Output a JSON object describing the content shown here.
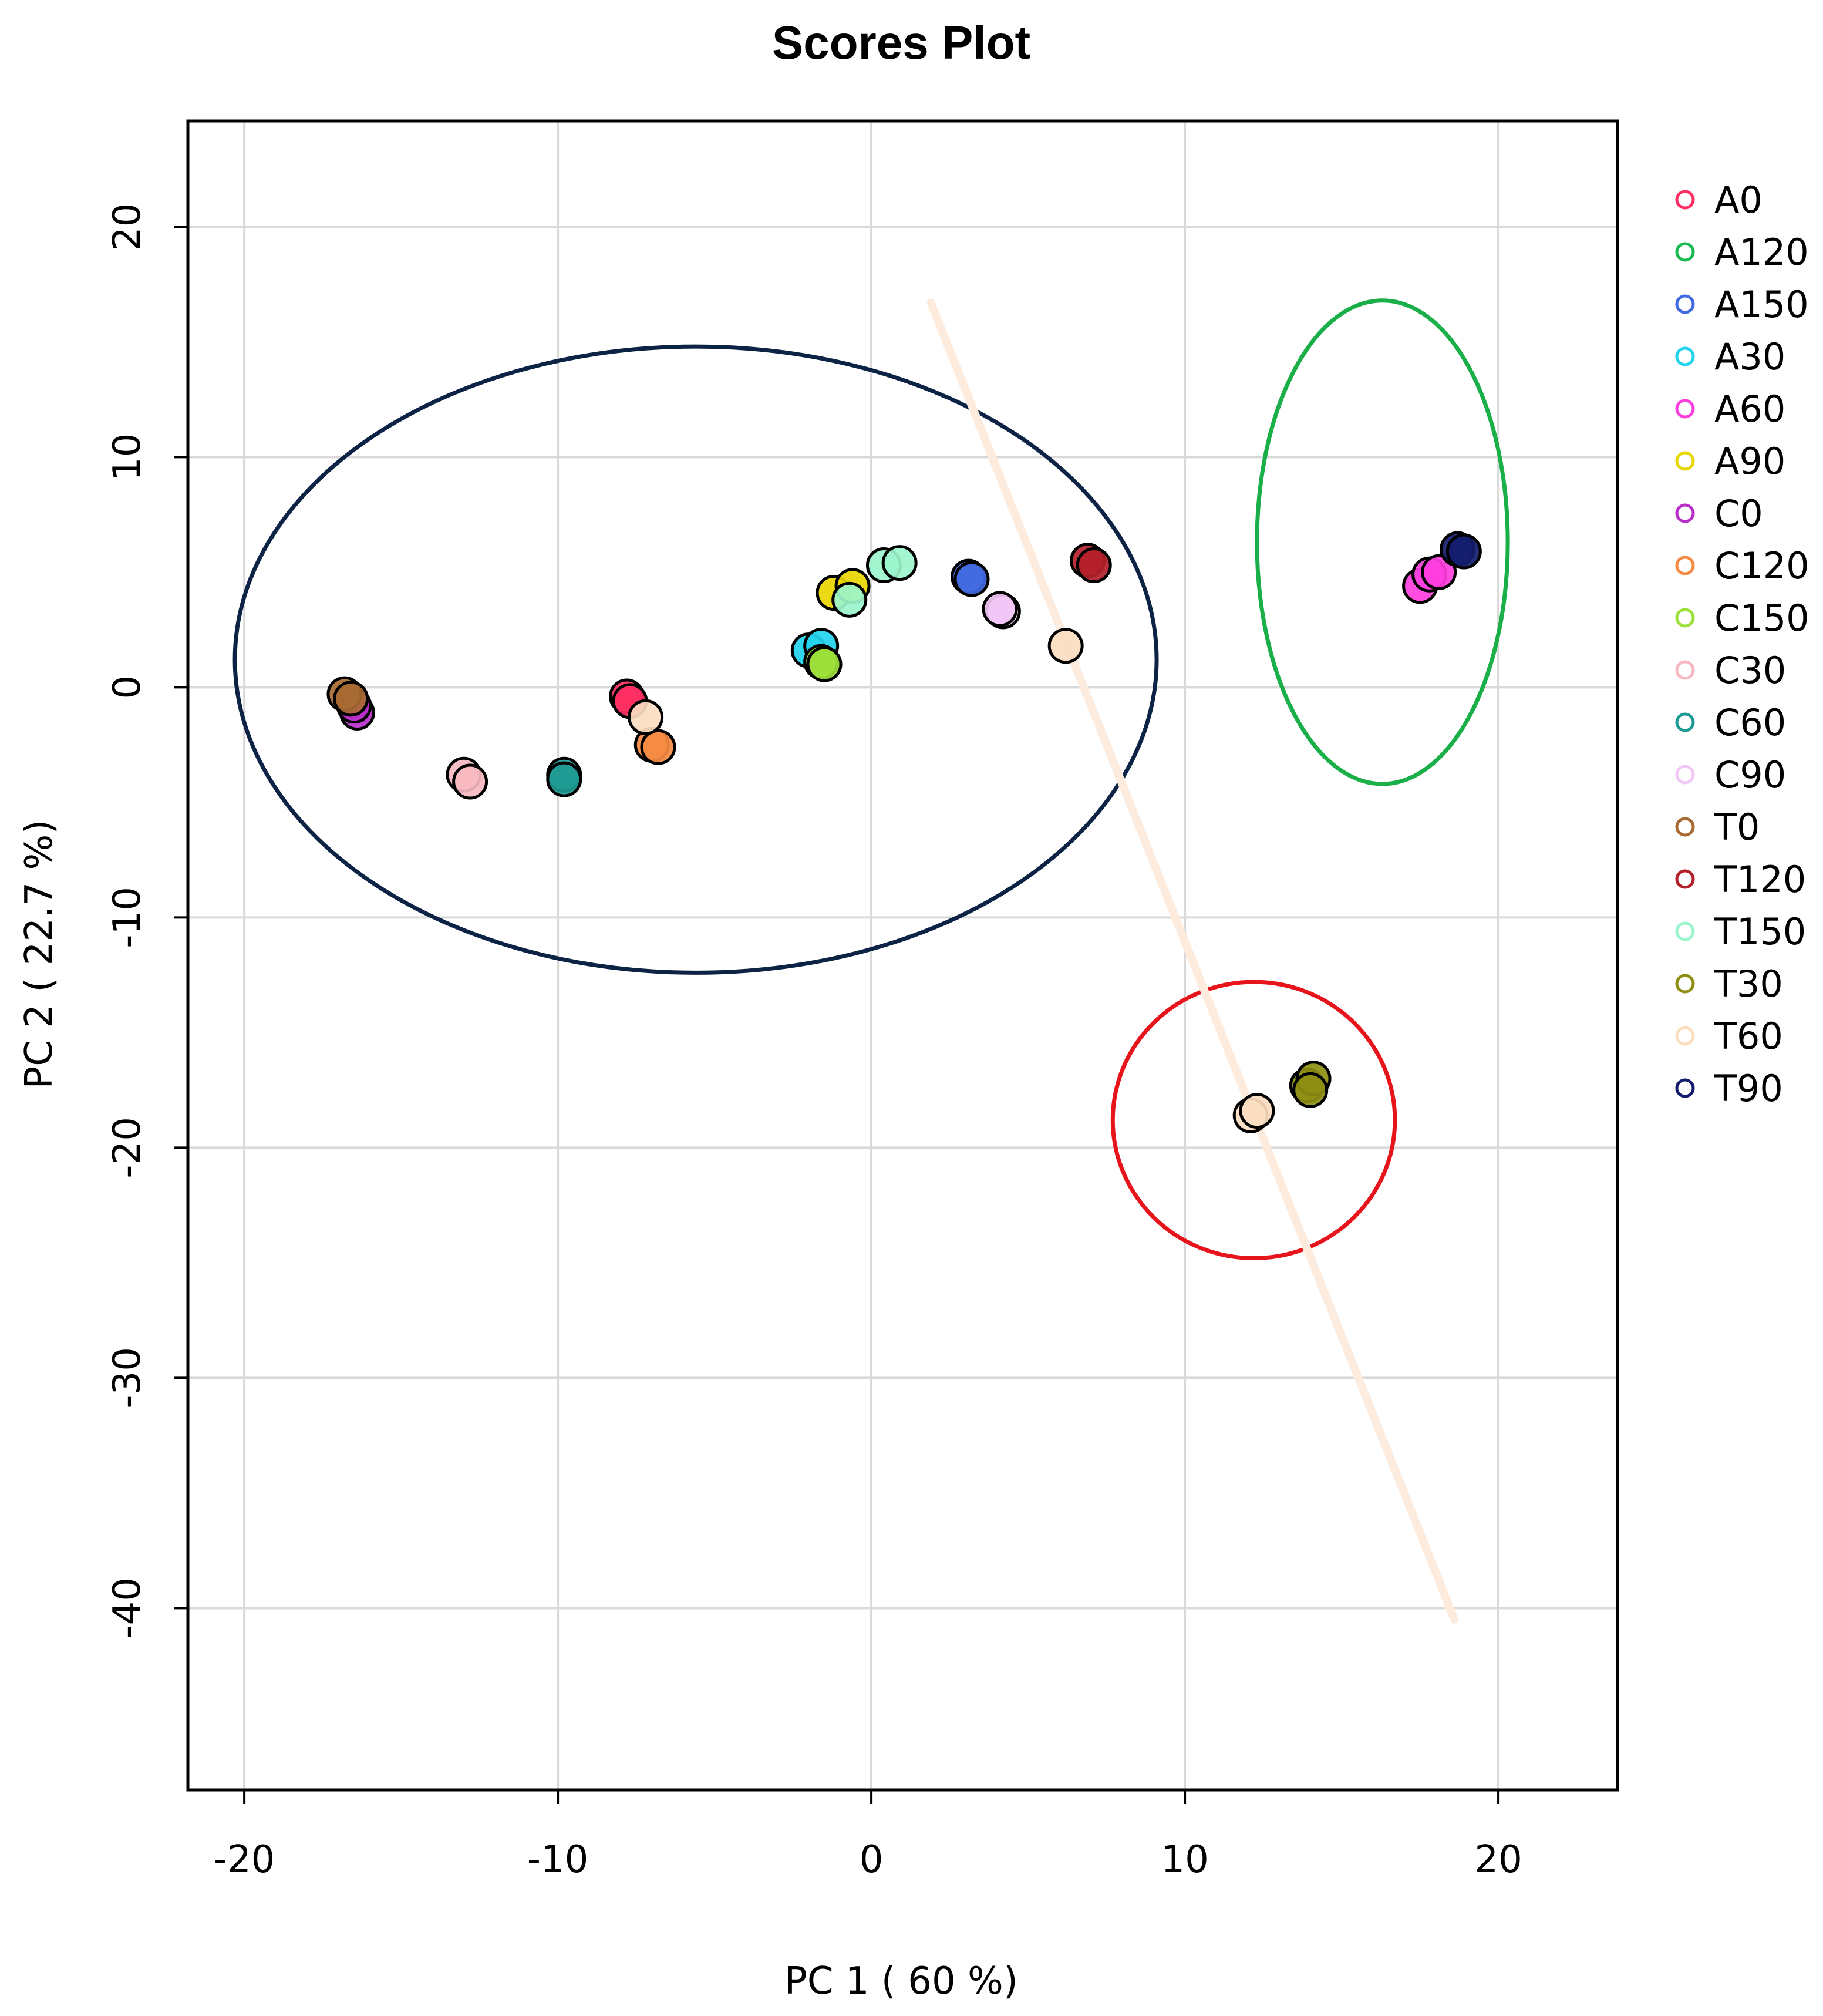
{
  "chart_data": {
    "type": "scatter",
    "title": "Scores Plot",
    "xlabel": "PC 1 ( 60 %)",
    "ylabel": "PC 2 ( 22.7 %)",
    "xlim": [
      -21.8,
      23.8
    ],
    "ylim": [
      -47.9,
      24.6
    ],
    "xticks": [
      -20,
      -10,
      0,
      10,
      20
    ],
    "yticks": [
      20,
      10,
      0,
      -10,
      -20,
      -30,
      -40
    ],
    "grid": true,
    "legend_position": "right",
    "series": [
      {
        "name": "A0",
        "color": "#FF2E63",
        "points": [
          [
            -7.8,
            -0.4
          ],
          [
            -7.7,
            -0.6
          ]
        ]
      },
      {
        "name": "A120",
        "color": "#1DB954",
        "points": []
      },
      {
        "name": "A150",
        "color": "#4169E1",
        "points": [
          [
            3.1,
            4.8
          ],
          [
            3.2,
            4.7
          ]
        ]
      },
      {
        "name": "A30",
        "color": "#22D3EE",
        "points": [
          [
            -2.0,
            1.6
          ],
          [
            -1.6,
            1.8
          ]
        ]
      },
      {
        "name": "A60",
        "color": "#FF3EE0",
        "points": [
          [
            17.5,
            4.4
          ],
          [
            17.8,
            4.9
          ],
          [
            18.1,
            5.0
          ]
        ]
      },
      {
        "name": "A90",
        "color": "#E8D600",
        "points": [
          [
            -1.2,
            4.1
          ],
          [
            -0.6,
            4.4
          ]
        ]
      },
      {
        "name": "C0",
        "color": "#B82EC9",
        "points": [
          [
            -16.4,
            -1.1
          ],
          [
            -16.5,
            -0.8
          ]
        ]
      },
      {
        "name": "C120",
        "color": "#F58A42",
        "points": [
          [
            -7.0,
            -2.5
          ],
          [
            -6.8,
            -2.6
          ]
        ]
      },
      {
        "name": "C150",
        "color": "#9CE03A",
        "points": [
          [
            -1.6,
            1.1
          ],
          [
            -1.5,
            1.0
          ]
        ]
      },
      {
        "name": "C30",
        "color": "#F7B8C0",
        "points": [
          [
            -13.0,
            -3.8
          ],
          [
            -12.8,
            -4.1
          ]
        ]
      },
      {
        "name": "C60",
        "color": "#1E9A94",
        "points": [
          [
            -9.8,
            -3.8
          ],
          [
            -9.8,
            -4.0
          ]
        ]
      },
      {
        "name": "C90",
        "color": "#F2C6F5",
        "points": [
          [
            4.2,
            3.3
          ],
          [
            4.1,
            3.4
          ]
        ]
      },
      {
        "name": "T0",
        "color": "#A86A32",
        "points": [
          [
            -16.8,
            -0.3
          ],
          [
            -16.6,
            -0.5
          ]
        ]
      },
      {
        "name": "T120",
        "color": "#B3202A",
        "points": [
          [
            6.9,
            5.5
          ],
          [
            7.1,
            5.3
          ]
        ]
      },
      {
        "name": "T150",
        "color": "#9BF5CC",
        "points": [
          [
            0.4,
            5.3
          ],
          [
            0.9,
            5.4
          ],
          [
            -0.7,
            3.8
          ]
        ]
      },
      {
        "name": "T30",
        "color": "#8E8E12",
        "points": [
          [
            13.9,
            -17.3
          ],
          [
            14.1,
            -17.0
          ],
          [
            14.0,
            -17.5
          ]
        ]
      },
      {
        "name": "T60",
        "color": "#FCDDC0",
        "points": [
          [
            12.1,
            -18.6
          ],
          [
            12.3,
            -18.4
          ],
          [
            6.2,
            1.8
          ],
          [
            -7.2,
            -1.3
          ]
        ]
      },
      {
        "name": "T90",
        "color": "#141C6E",
        "points": [
          [
            18.7,
            6.0
          ],
          [
            18.9,
            5.9
          ]
        ]
      }
    ],
    "annotations": [
      {
        "shape": "ellipse",
        "cx": -5.6,
        "cy": 1.2,
        "rx": 14.7,
        "ry": 13.6,
        "color": "#0D2345"
      },
      {
        "shape": "ellipse",
        "cx": 16.3,
        "cy": 6.3,
        "rx": 4.0,
        "ry": 10.5,
        "color": "#1AAF48"
      },
      {
        "shape": "ellipse",
        "cx": 12.2,
        "cy": -18.8,
        "rx": 4.5,
        "ry": 6.0,
        "color": "#E8141C"
      },
      {
        "shape": "line",
        "x1": 1.9,
        "y1": 16.7,
        "x2": 18.6,
        "y2": -40.5,
        "color": "#FDEBDD"
      }
    ]
  }
}
